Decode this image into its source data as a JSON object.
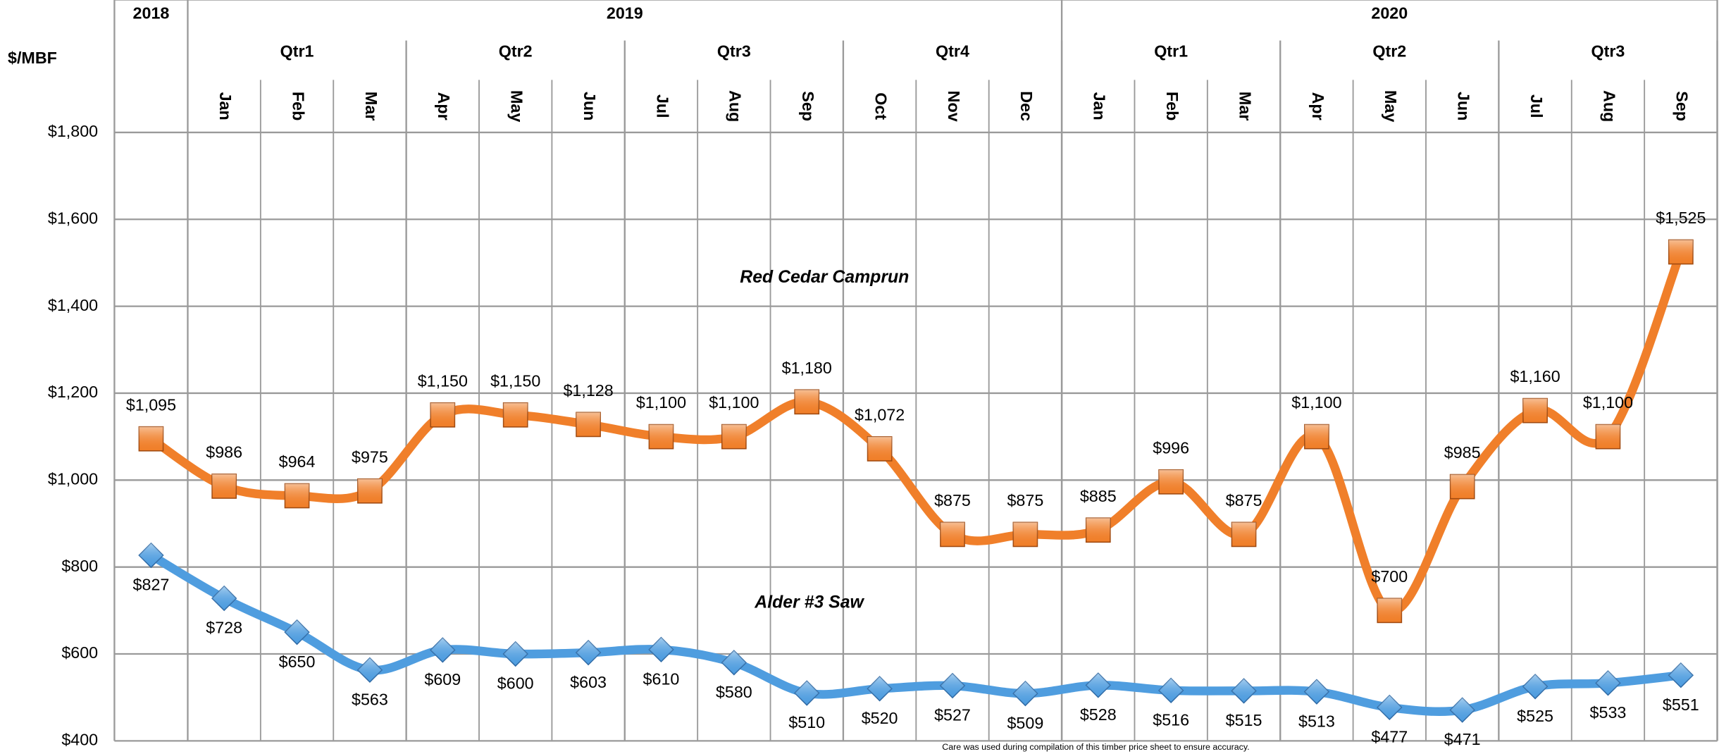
{
  "chart_data": {
    "type": "line",
    "y_label": "$/MBF",
    "years": [
      "2018",
      "2019",
      "2020"
    ],
    "quarters": [
      "Qtr1",
      "Qtr2",
      "Qtr3",
      "Qtr4",
      "Qtr1",
      "Qtr2",
      "Qtr3"
    ],
    "categories": [
      null,
      "Jan",
      "Feb",
      "Mar",
      "Apr",
      "May",
      "Jun",
      "Jul",
      "Aug",
      "Sep",
      "Oct",
      "Nov",
      "Dec",
      "Jan",
      "Feb",
      "Mar",
      "Apr",
      "May",
      "Jun",
      "Jul",
      "Aug",
      "Sep"
    ],
    "series": [
      {
        "name": "Red Cedar Camprun",
        "color": "#f07f2a",
        "marker": "square",
        "values": [
          1095,
          986,
          964,
          975,
          1150,
          1150,
          1128,
          1100,
          1100,
          1180,
          1072,
          875,
          875,
          885,
          996,
          875,
          1100,
          700,
          985,
          1160,
          1100,
          1525
        ],
        "value_labels": [
          "$1,095",
          "$986",
          "$964",
          "$975",
          "$1,150",
          "$1,150",
          "$1,128",
          "$1,100",
          "$1,100",
          "$1,180",
          "$1,072",
          "$875",
          "$875",
          "$885",
          "$996",
          "$875",
          "$1,100",
          "$700",
          "$985",
          "$1,160",
          "$1,100",
          "$1,525"
        ]
      },
      {
        "name": "Alder #3 Saw",
        "color": "#4f9ddf",
        "marker": "diamond",
        "values": [
          827,
          728,
          650,
          563,
          609,
          600,
          603,
          610,
          580,
          510,
          520,
          527,
          509,
          528,
          516,
          515,
          513,
          477,
          471,
          525,
          533,
          551
        ],
        "value_labels": [
          "$827",
          "$728",
          "$650",
          "$563",
          "$609",
          "$600",
          "$603",
          "$610",
          "$580",
          "$510",
          "$520",
          "$527",
          "$509",
          "$528",
          "$516",
          "$515",
          "$513",
          "$477",
          "$471",
          "$525",
          "$533",
          "$551"
        ]
      }
    ],
    "ylim": [
      400,
      1800
    ],
    "yticks": [
      {
        "value": 400,
        "label": "$400"
      },
      {
        "value": 600,
        "label": "$600"
      },
      {
        "value": 800,
        "label": "$800"
      },
      {
        "value": 1000,
        "label": "$1,000"
      },
      {
        "value": 1200,
        "label": "$1,200"
      },
      {
        "value": 1400,
        "label": "$1,400"
      },
      {
        "value": 1600,
        "label": "$1,600"
      },
      {
        "value": 1800,
        "label": "$1,800"
      }
    ],
    "grid": true,
    "footnote": "Care was used during compilation of this timber price sheet to ensure accuracy."
  }
}
